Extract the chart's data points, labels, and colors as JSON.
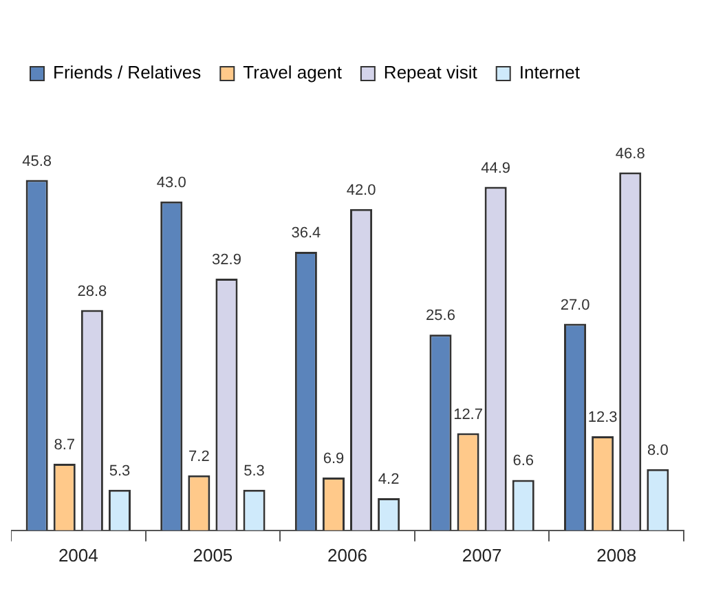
{
  "chart_data": {
    "type": "bar",
    "categories": [
      "2004",
      "2005",
      "2006",
      "2007",
      "2008"
    ],
    "series": [
      {
        "name": "Friends / Relatives",
        "color": "#5b84bb",
        "values": [
          45.8,
          43.0,
          36.4,
          25.6,
          27.0
        ],
        "value_labels": [
          "45.8",
          "43.0",
          "36.4",
          "25.6",
          "27.0"
        ]
      },
      {
        "name": "Travel agent",
        "color": "#ffc98a",
        "values": [
          8.7,
          7.2,
          6.9,
          12.7,
          12.3
        ],
        "value_labels": [
          "8.7",
          "7.2",
          "6.9",
          "12.7",
          "12.3"
        ]
      },
      {
        "name": "Repeat visit",
        "color": "#d4d4ea",
        "values": [
          28.8,
          32.9,
          42.0,
          44.9,
          46.8
        ],
        "value_labels": [
          "28.8",
          "32.9",
          "42.0",
          "44.9",
          "46.8"
        ]
      },
      {
        "name": "Internet",
        "color": "#cfeafb",
        "values": [
          5.3,
          5.3,
          4.2,
          6.6,
          8.0
        ],
        "value_labels": [
          "5.3",
          "5.3",
          "4.2",
          "6.6",
          "8.0"
        ]
      }
    ],
    "legend": "top",
    "grid": false
  }
}
